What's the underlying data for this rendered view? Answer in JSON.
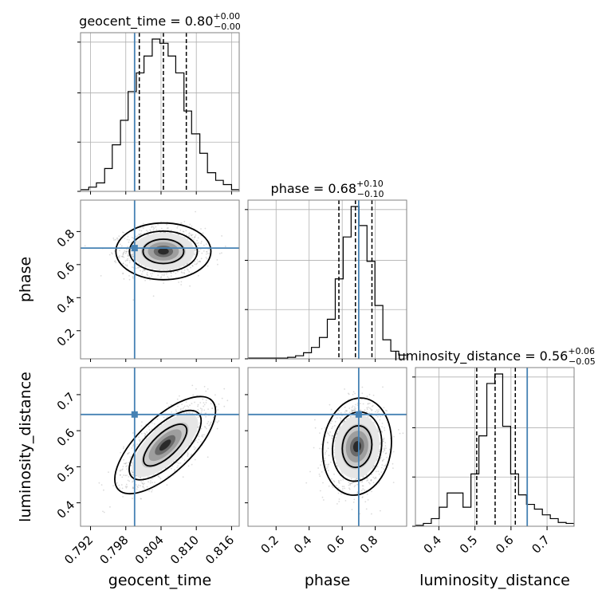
{
  "chart_data": {
    "type": "corner",
    "parameters": [
      "geocent_time",
      "phase",
      "luminosity_distance"
    ],
    "injection": {
      "geocent_time": 0.7995,
      "phase": 0.7,
      "luminosity_distance": 0.645
    },
    "titles": {
      "geocent_time": {
        "prefix": "geocent_time = 0.80",
        "plus": "+0.00",
        "minus": "−0.00"
      },
      "phase": {
        "prefix": "phase = 0.68",
        "plus": "+0.10",
        "minus": "−0.10"
      },
      "luminosity_distance": {
        "prefix": "luminosity_distance = 0.56",
        "plus": "+0.06",
        "minus": "−0.05"
      }
    },
    "axes": {
      "geocent_time": {
        "range": [
          0.7903,
          0.8173
        ],
        "ticks": [
          "0.792",
          "0.798",
          "0.804",
          "0.810",
          "0.816"
        ],
        "tick_values": [
          0.792,
          0.798,
          0.804,
          0.81,
          0.816
        ]
      },
      "phase": {
        "range": [
          0.03,
          0.99
        ],
        "ticks": [
          "0.2",
          "0.4",
          "0.6",
          "0.8"
        ],
        "tick_values": [
          0.2,
          0.4,
          0.6,
          0.8
        ]
      },
      "luminosity_distance": {
        "range": [
          0.335,
          0.775
        ],
        "ticks": [
          "0.4",
          "0.5",
          "0.6",
          "0.7"
        ],
        "tick_values": [
          0.4,
          0.5,
          0.6,
          0.7
        ]
      }
    },
    "marginals": {
      "geocent_time": {
        "quantiles": [
          0.8003,
          0.8044,
          0.8083
        ],
        "bins": [
          0.7903,
          0.7917,
          0.793,
          0.7944,
          0.7957,
          0.7971,
          0.7984,
          0.7998,
          0.8011,
          0.8025,
          0.8038,
          0.8052,
          0.8065,
          0.8079,
          0.8092,
          0.8106,
          0.8119,
          0.8133,
          0.8146,
          0.816,
          0.8173
        ],
        "counts": [
          2,
          5,
          10,
          27,
          55,
          84,
          118,
          140,
          160,
          180,
          175,
          160,
          140,
          95,
          68,
          45,
          22,
          13,
          8,
          2
        ]
      },
      "phase": {
        "quantiles": [
          0.58,
          0.68,
          0.78
        ],
        "bins": [
          0.03,
          0.078,
          0.126,
          0.174,
          0.222,
          0.27,
          0.318,
          0.366,
          0.414,
          0.462,
          0.51,
          0.558,
          0.606,
          0.654,
          0.702,
          0.75,
          0.798,
          0.846,
          0.894,
          0.942,
          0.99
        ],
        "counts": [
          1,
          1,
          1,
          1,
          1,
          2,
          4,
          8,
          15,
          28,
          52,
          105,
          160,
          200,
          175,
          128,
          70,
          25,
          10,
          5
        ]
      },
      "luminosity_distance": {
        "quantiles": [
          0.505,
          0.556,
          0.612
        ],
        "bins": [
          0.335,
          0.357,
          0.379,
          0.401,
          0.423,
          0.445,
          0.467,
          0.489,
          0.511,
          0.533,
          0.555,
          0.577,
          0.599,
          0.621,
          0.643,
          0.665,
          0.687,
          0.709,
          0.731,
          0.753,
          0.775
        ],
        "counts": [
          1,
          3,
          8,
          20,
          35,
          35,
          20,
          55,
          95,
          150,
          160,
          105,
          55,
          33,
          23,
          18,
          12,
          8,
          4,
          3
        ]
      }
    },
    "joint": {
      "phase_vs_geocent_time": {
        "center": [
          0.8044,
          0.68
        ],
        "std": [
          0.0033,
          0.07
        ],
        "corr": 0.0
      },
      "luminosity_distance_vs_geocent_time": {
        "center": [
          0.8047,
          0.56
        ],
        "std": [
          0.0035,
          0.055
        ],
        "corr": 0.7
      },
      "luminosity_distance_vs_phase": {
        "center": [
          0.69,
          0.556
        ],
        "std": [
          0.085,
          0.055
        ],
        "corr": 0.1
      }
    },
    "colors": {
      "hist": "#000000",
      "truth": "#4682b4",
      "grid": "#b0b0b0",
      "frame": "#808080",
      "scatter": "#999999"
    }
  }
}
